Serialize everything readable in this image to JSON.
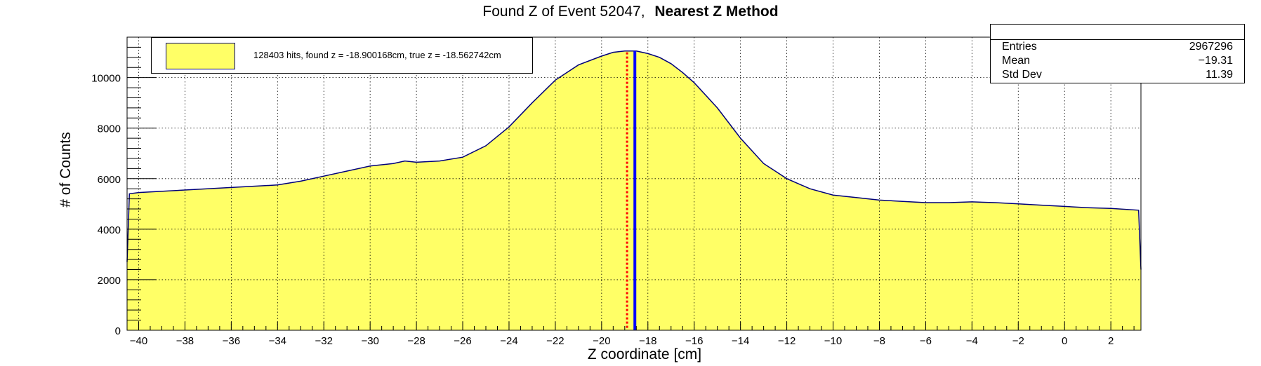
{
  "title": {
    "main": "Found Z of Event 52047,",
    "method": "Nearest Z Method"
  },
  "stats": {
    "rows": [
      {
        "key": "Entries",
        "value": "2967296"
      },
      {
        "key": "Mean",
        "value": "−19.31"
      },
      {
        "key": "Std Dev",
        "value": "11.39"
      }
    ]
  },
  "legend": {
    "label": "128403 hits, found z = -18.900168cm, true z = -18.562742cm"
  },
  "colors": {
    "fill": "#ffff66",
    "outline": "#00007a",
    "found_line": "#ff0000",
    "true_line": "#0000ff"
  },
  "chart_data": {
    "type": "area",
    "title": "Found Z of Event 52047,   Nearest Z Method",
    "xlabel": "Z coordinate [cm]",
    "ylabel": "# of Counts",
    "xlim": [
      -40.5,
      3.3
    ],
    "ylim": [
      0,
      11600
    ],
    "grid": true,
    "legend_position": "top-left",
    "x_ticks": [
      -40,
      -38,
      -36,
      -34,
      -32,
      -30,
      -28,
      -26,
      -24,
      -22,
      -20,
      -18,
      -16,
      -14,
      -12,
      -10,
      -8,
      -6,
      -4,
      -2,
      0,
      2
    ],
    "y_ticks": [
      0,
      2000,
      4000,
      6000,
      8000,
      10000
    ],
    "x_tick_labels": [
      "−40",
      "−38",
      "−36",
      "−34",
      "−32",
      "−30",
      "−28",
      "−26",
      "−24",
      "−22",
      "−20",
      "−18",
      "−16",
      "−14",
      "−12",
      "−10",
      "−8",
      "−6",
      "−4",
      "−2",
      "0",
      "2"
    ],
    "y_tick_labels": [
      "0",
      "2000",
      "4000",
      "6000",
      "8000",
      "10000"
    ],
    "series": [
      {
        "name": "128403 hits, found z = -18.900168cm, true z = -18.562742cm",
        "x": [
          -40.5,
          -40.4,
          -40,
          -38,
          -36,
          -34,
          -33,
          -32,
          -31,
          -30,
          -29,
          -28.5,
          -28,
          -27,
          -26,
          -25,
          -24,
          -23,
          -22,
          -21,
          -20,
          -19.5,
          -19,
          -18.5,
          -18,
          -17.5,
          -17,
          -16.5,
          -16,
          -15,
          -14,
          -13,
          -12,
          -11,
          -10,
          -9,
          -8,
          -7,
          -6,
          -5,
          -4,
          -3,
          -2,
          -1,
          0,
          1,
          2,
          3.2,
          3.3
        ],
        "y": [
          2700,
          5400,
          5450,
          5550,
          5650,
          5750,
          5900,
          6100,
          6300,
          6500,
          6600,
          6700,
          6650,
          6700,
          6850,
          7300,
          8050,
          9000,
          9900,
          10500,
          10850,
          11000,
          11050,
          11050,
          10950,
          10800,
          10550,
          10200,
          9800,
          8800,
          7600,
          6600,
          6000,
          5600,
          5350,
          5250,
          5150,
          5100,
          5050,
          5050,
          5080,
          5050,
          5000,
          4950,
          4900,
          4850,
          4820,
          4750,
          2400
        ]
      }
    ],
    "found_z": -18.900168,
    "true_z": -18.562742
  }
}
